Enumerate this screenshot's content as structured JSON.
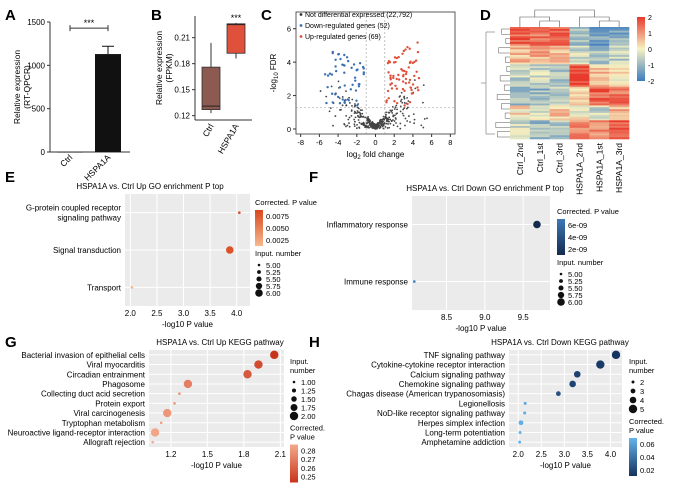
{
  "panels": {
    "A": "A",
    "B": "B",
    "C": "C",
    "D": "D",
    "E": "E",
    "F": "F",
    "G": "G",
    "H": "H"
  },
  "chart_data": [
    {
      "id": "A",
      "type": "bar",
      "ylabel": "Relative expression\n(RT-QPCR)",
      "categories": [
        "Ctrl",
        "HSPA1A"
      ],
      "values": [
        1,
        1130
      ],
      "error": [
        0,
        90
      ],
      "ylim": [
        0,
        1500
      ],
      "yticks": [
        0,
        500,
        1000,
        1500
      ],
      "significance": "***"
    },
    {
      "id": "B",
      "type": "box",
      "ylabel": "Relative expression\n(FPKM)",
      "categories": [
        "Ctrl",
        "HSPA1A"
      ],
      "boxes": [
        {
          "min": 0.123,
          "q1": 0.127,
          "median": 0.131,
          "q3": 0.176,
          "max": 0.204,
          "color": "#8c5a50"
        },
        {
          "min": 0.186,
          "q1": 0.192,
          "median": 0.225,
          "q3": 0.226,
          "max": 0.227,
          "color": "#e0513c"
        }
      ],
      "ylim": [
        0.115,
        0.235
      ],
      "yticks": [
        0.12,
        0.15,
        0.18,
        0.21
      ],
      "significance": "***"
    },
    {
      "id": "C",
      "type": "scatter",
      "title": "",
      "xlabel": "log2 fold change",
      "ylabel": "-log10 FDR",
      "xlim": [
        -8.5,
        8.5
      ],
      "ylim": [
        -0.3,
        7
      ],
      "xticks": [
        -8,
        -6,
        -4,
        -2,
        0,
        2,
        4,
        6,
        8
      ],
      "yticks": [
        0,
        2,
        4,
        6
      ],
      "legend": [
        {
          "label": "Not differential expressed (22,792)",
          "color": "#333333"
        },
        {
          "label": "Down-regulated genes (52)",
          "color": "#3a6fb5"
        },
        {
          "label": "Up-regulated genes (69)",
          "color": "#e0513c"
        }
      ]
    },
    {
      "id": "D",
      "type": "heatmap",
      "columns": [
        "Ctrl_2nd",
        "Ctrl_1st",
        "Ctrl_3rd",
        "HSPA1A_2nd",
        "HSPA1A_1st",
        "HSPA1A_3rd"
      ],
      "colorbar_ticks": [
        2,
        1,
        0,
        -1,
        -2
      ],
      "colors": {
        "high": "#e8392c",
        "mid": "#f6f2c2",
        "low": "#3c7bbf"
      }
    },
    {
      "id": "E",
      "type": "scatter",
      "title": "HSPA1A vs. Ctrl Up GO enrichment P top",
      "xlabel": "-log10 P value",
      "xlim": [
        1.9,
        4.25
      ],
      "xticks": [
        2.0,
        2.5,
        3.0,
        3.5,
        4.0
      ],
      "categories": [
        "Transport",
        "Signal transduction",
        "G-protein coupled receptor\nsignaling pathway"
      ],
      "points": [
        {
          "term": "G-protein coupled receptor\nsignaling pathway",
          "x": 4.05,
          "count": 5,
          "p": 0.0085
        },
        {
          "term": "Signal transduction",
          "x": 3.87,
          "count": 6,
          "p": 0.0079
        },
        {
          "term": "Transport",
          "x": 2.03,
          "count": 5,
          "p": 0.0015
        }
      ],
      "size_legend_title": "Input. number",
      "size_legend": [
        "5.00",
        "5.25",
        "5.50",
        "5.75",
        "6.00"
      ],
      "color_legend_title": "Corrected. P value",
      "color_legend": [
        "0.0075",
        "0.0050",
        "0.0025"
      ]
    },
    {
      "id": "F",
      "type": "scatter",
      "title": "HSPA1A vs. Ctrl Down GO enrichment P top",
      "xlabel": "-log10 P value",
      "xlim": [
        8.05,
        9.85
      ],
      "xticks": [
        8.5,
        9.0,
        9.5
      ],
      "categories": [
        "Immune response",
        "Inflammatory response"
      ],
      "points": [
        {
          "term": "Inflammatory response",
          "x": 9.68,
          "count": 6,
          "p": 6.5e-09
        },
        {
          "term": "Immune response",
          "x": 8.08,
          "count": 5,
          "p": 2.5e-10
        }
      ],
      "size_legend_title": "Input. number",
      "size_legend": [
        "5.00",
        "5.25",
        "5.50",
        "5.75",
        "6.00"
      ],
      "color_legend_title": "Corrected. P value",
      "color_legend": [
        "6e-09",
        "4e-09",
        "2e-09"
      ]
    },
    {
      "id": "G",
      "type": "scatter",
      "title": "HSPA1A vs. Ctrl Up KEGG pathway",
      "xlabel": "-log10 P value",
      "xlim": [
        1.02,
        2.13
      ],
      "xticks": [
        1.2,
        1.5,
        1.8,
        2.1
      ],
      "categories": [
        "Allograft rejection",
        "Neuroactive ligand-receptor interaction",
        "Tryptophan metabolism",
        "Viral carcinogenesis",
        "Protein export",
        "Collecting duct acid secretion",
        "Phagosome",
        "Circadian entrainment",
        "Viral myocarditis",
        "Bacterial invasion of epithelial cells"
      ],
      "points": [
        {
          "term": "Bacterial invasion of epithelial cells",
          "x": 2.05,
          "count": 2,
          "p": 0.252
        },
        {
          "term": "Viral myocarditis",
          "x": 1.92,
          "count": 2,
          "p": 0.258
        },
        {
          "term": "Circadian entrainment",
          "x": 1.83,
          "count": 2,
          "p": 0.262
        },
        {
          "term": "Phagosome",
          "x": 1.34,
          "count": 2,
          "p": 0.272
        },
        {
          "term": "Collecting duct acid secretion",
          "x": 1.27,
          "count": 1,
          "p": 0.276
        },
        {
          "term": "Protein export",
          "x": 1.23,
          "count": 1,
          "p": 0.278
        },
        {
          "term": "Viral carcinogenesis",
          "x": 1.17,
          "count": 2,
          "p": 0.278
        },
        {
          "term": "Tryptophan metabolism",
          "x": 1.12,
          "count": 1,
          "p": 0.28
        },
        {
          "term": "Neuroactive ligand-receptor interaction",
          "x": 1.07,
          "count": 2,
          "p": 0.282
        },
        {
          "term": "Allograft rejection",
          "x": 1.05,
          "count": 1,
          "p": 0.283
        }
      ],
      "size_legend_title": "Input.\nnumber",
      "size_legend": [
        "1.00",
        "1.25",
        "1.50",
        "1.75",
        "2.00"
      ],
      "color_legend_title": "Corrected.\nP value",
      "color_legend": [
        "0.28",
        "0.27",
        "0.26",
        "0.25"
      ]
    },
    {
      "id": "H",
      "type": "scatter",
      "title": "HSPA1A vs. Ctrl Down KEGG pathway",
      "xlabel": "-log10 P value",
      "xlim": [
        1.8,
        4.25
      ],
      "xticks": [
        2.0,
        2.5,
        3.0,
        3.5,
        4.0
      ],
      "categories": [
        "Amphetamine addiction",
        "Long-term potentiation",
        "Herpes simplex infection",
        "NoD-like receptor signaling pathway",
        "Legionellosis",
        "Chagas disease (American trypanosomiasis)",
        "Chemokine signaling pathway",
        "Calcium signaling pathway",
        "Cytokine-cytokine receptor interaction",
        "TNF signaling pathway"
      ],
      "points": [
        {
          "term": "TNF signaling pathway",
          "x": 4.12,
          "count": 5,
          "p": 0.005
        },
        {
          "term": "Cytokine-cytokine receptor interaction",
          "x": 3.78,
          "count": 5,
          "p": 0.008
        },
        {
          "term": "Calcium signaling pathway",
          "x": 3.28,
          "count": 4,
          "p": 0.012
        },
        {
          "term": "Chemokine signaling pathway",
          "x": 3.18,
          "count": 4,
          "p": 0.013
        },
        {
          "term": "Chagas disease (American trypanosomiasis)",
          "x": 2.87,
          "count": 3,
          "p": 0.02
        },
        {
          "term": "Legionellosis",
          "x": 2.15,
          "count": 2,
          "p": 0.062
        },
        {
          "term": "NoD-like receptor signaling pathway",
          "x": 2.14,
          "count": 2,
          "p": 0.063
        },
        {
          "term": "Herpes simplex infection",
          "x": 2.06,
          "count": 3,
          "p": 0.066
        },
        {
          "term": "Long-term potentiation",
          "x": 2.04,
          "count": 2,
          "p": 0.067
        },
        {
          "term": "Amphetamine addiction",
          "x": 2.03,
          "count": 2,
          "p": 0.068
        }
      ],
      "size_legend_title": "Input.\nnumber",
      "size_legend": [
        "2",
        "3",
        "4",
        "5"
      ],
      "color_legend_title": "Corrected.\nP value",
      "color_legend": [
        "0.06",
        "0.04",
        "0.02"
      ]
    }
  ]
}
